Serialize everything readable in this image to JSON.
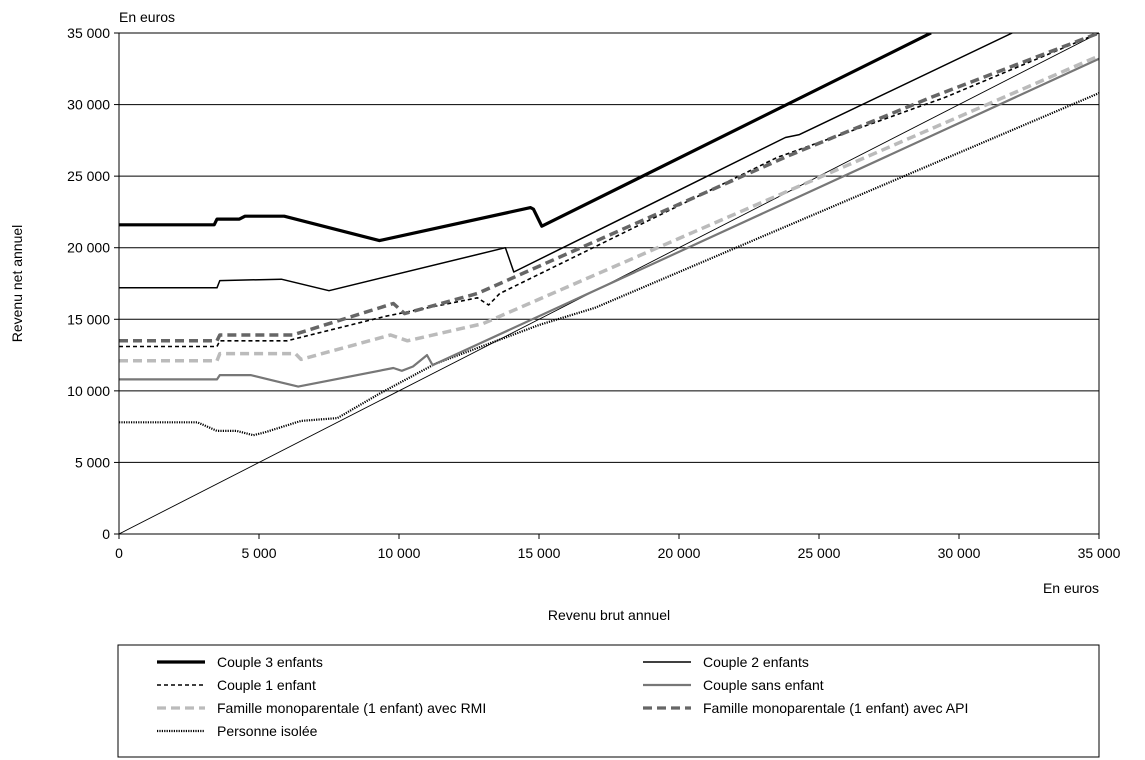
{
  "chart_data": {
    "type": "line",
    "xlabel": "Revenu brut annuel",
    "ylabel": "Revenu net annuel",
    "x_unit": "En euros",
    "y_unit": "En euros",
    "xlim": [
      0,
      35000
    ],
    "ylim": [
      0,
      35000
    ],
    "x_ticks": [
      0,
      5000,
      10000,
      15000,
      20000,
      25000,
      30000,
      35000
    ],
    "y_ticks": [
      0,
      5000,
      10000,
      15000,
      20000,
      25000,
      30000,
      35000
    ],
    "x_tick_labels": [
      "0",
      "5 000",
      "10 000",
      "15 000",
      "20 000",
      "25 000",
      "30 000",
      "35 000"
    ],
    "y_tick_labels": [
      "0",
      "5 000",
      "10 000",
      "15 000",
      "20 000",
      "25 000",
      "30 000",
      "35 000"
    ],
    "grid": "horizontal",
    "legend_position": "bottom",
    "series": [
      {
        "name": "Couple 3 enfants",
        "color": "#000000",
        "style": "solid-thick",
        "points": [
          [
            0,
            21600
          ],
          [
            3400,
            21600
          ],
          [
            3500,
            22000
          ],
          [
            4300,
            22000
          ],
          [
            4500,
            22200
          ],
          [
            5900,
            22200
          ],
          [
            9300,
            20500
          ],
          [
            14700,
            22800
          ],
          [
            14800,
            22700
          ],
          [
            15100,
            21500
          ],
          [
            29000,
            35000
          ]
        ]
      },
      {
        "name": "Couple 2 enfants",
        "color": "#000000",
        "style": "solid-thin",
        "points": [
          [
            0,
            17200
          ],
          [
            3500,
            17200
          ],
          [
            3600,
            17700
          ],
          [
            5800,
            17800
          ],
          [
            7500,
            17000
          ],
          [
            13800,
            20000
          ],
          [
            14100,
            18300
          ],
          [
            23800,
            27700
          ],
          [
            24300,
            27900
          ],
          [
            31900,
            35000
          ]
        ]
      },
      {
        "name": "Couple 1 enfant",
        "color": "#000000",
        "style": "dashed",
        "points": [
          [
            0,
            13100
          ],
          [
            3500,
            13100
          ],
          [
            3600,
            13500
          ],
          [
            6000,
            13500
          ],
          [
            9500,
            15200
          ],
          [
            12800,
            16500
          ],
          [
            13200,
            16000
          ],
          [
            13600,
            16800
          ],
          [
            23500,
            26300
          ],
          [
            29500,
            30500
          ],
          [
            35000,
            35000
          ]
        ]
      },
      {
        "name": "Couple sans enfant",
        "color": "#777777",
        "style": "solid-medium",
        "points": [
          [
            0,
            10800
          ],
          [
            3500,
            10800
          ],
          [
            3600,
            11100
          ],
          [
            4700,
            11100
          ],
          [
            6400,
            10300
          ],
          [
            9800,
            11600
          ],
          [
            10100,
            11400
          ],
          [
            10500,
            11700
          ],
          [
            11000,
            12500
          ],
          [
            11200,
            11800
          ],
          [
            35000,
            33200
          ]
        ]
      },
      {
        "name": "Famille monoparentale (1 enfant) avec RMI",
        "color": "#bbbbbb",
        "style": "dashed-thick",
        "points": [
          [
            0,
            12100
          ],
          [
            3500,
            12100
          ],
          [
            3600,
            12600
          ],
          [
            6300,
            12600
          ],
          [
            6500,
            12200
          ],
          [
            9700,
            13900
          ],
          [
            10300,
            13500
          ],
          [
            13000,
            14700
          ],
          [
            35000,
            33400
          ]
        ]
      },
      {
        "name": "Famille monoparentale (1 enfant) avec API",
        "color": "#666666",
        "style": "dashed-thick",
        "points": [
          [
            0,
            13500
          ],
          [
            3500,
            13500
          ],
          [
            3600,
            13900
          ],
          [
            6200,
            13900
          ],
          [
            9800,
            16100
          ],
          [
            10200,
            15400
          ],
          [
            12800,
            16800
          ],
          [
            24000,
            26500
          ],
          [
            29000,
            30500
          ],
          [
            35000,
            35000
          ]
        ]
      },
      {
        "name": "Personne isolée",
        "color": "#000000",
        "style": "dotted",
        "points": [
          [
            0,
            7800
          ],
          [
            2800,
            7800
          ],
          [
            3500,
            7200
          ],
          [
            4200,
            7200
          ],
          [
            4800,
            6900
          ],
          [
            5200,
            7100
          ],
          [
            6500,
            7900
          ],
          [
            7800,
            8100
          ],
          [
            9300,
            9800
          ],
          [
            11300,
            11900
          ],
          [
            15000,
            14600
          ],
          [
            17000,
            15800
          ],
          [
            35000,
            30800
          ]
        ]
      },
      {
        "name": "",
        "color": "#000000",
        "style": "reference",
        "points": [
          [
            0,
            0
          ],
          [
            35000,
            35000
          ]
        ]
      }
    ]
  }
}
